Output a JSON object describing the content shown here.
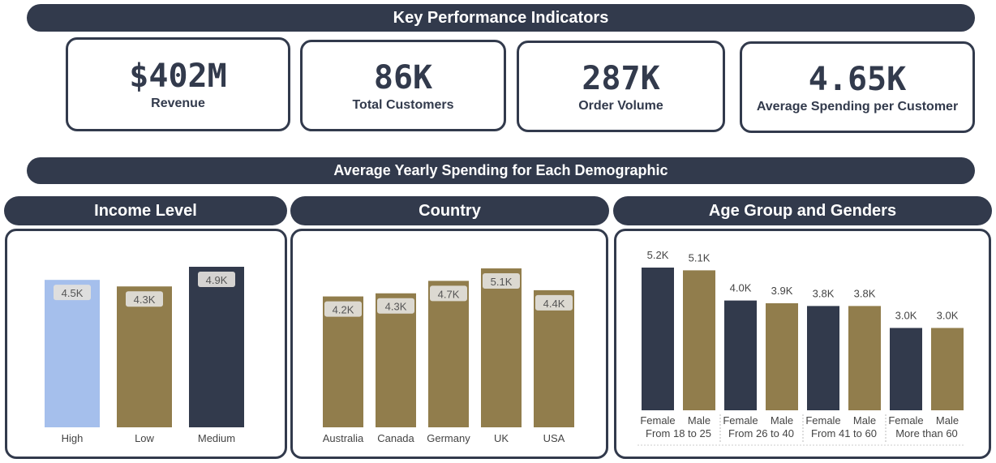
{
  "kpi_header": "Key Performance Indicators",
  "kpis": [
    {
      "value": "$402M",
      "label": "Revenue"
    },
    {
      "value": "86K",
      "label": "Total Customers"
    },
    {
      "value": "287K",
      "label": "Order Volume"
    },
    {
      "value": "4.65K",
      "label": "Average Spending per Customer"
    }
  ],
  "section_header": "Average Yearly Spending for Each Demographic",
  "panel_titles": {
    "income": "Income Level",
    "country": "Country",
    "age": "Age Group and Genders"
  },
  "colors": {
    "navy": "#323a4c",
    "gold": "#917d4c",
    "lightblue": "#a5bfec"
  },
  "chart_data": [
    {
      "type": "bar",
      "title": "Income Level",
      "categories": [
        "High",
        "Low",
        "Medium"
      ],
      "values": [
        4500,
        4300,
        4900
      ],
      "labels": [
        "4.5K",
        "4.3K",
        "4.9K"
      ],
      "colors": [
        "#a5bfec",
        "#917d4c",
        "#323a4c"
      ],
      "ylim": [
        0,
        4900
      ]
    },
    {
      "type": "bar",
      "title": "Country",
      "categories": [
        "Australia",
        "Canada",
        "Germany",
        "UK",
        "USA"
      ],
      "values": [
        4200,
        4300,
        4700,
        5100,
        4400
      ],
      "labels": [
        "4.2K",
        "4.3K",
        "4.7K",
        "5.1K",
        "4.4K"
      ],
      "colors": [
        "#917d4c",
        "#917d4c",
        "#917d4c",
        "#917d4c",
        "#917d4c"
      ],
      "ylim": [
        0,
        5100
      ]
    },
    {
      "type": "bar",
      "title": "Age Group and Genders",
      "groups": [
        "From 18 to 25",
        "From 26 to 40",
        "From 41 to 60",
        "More than 60"
      ],
      "sub_categories": [
        "Female",
        "Male"
      ],
      "series": [
        {
          "name": "Female",
          "values": [
            5200,
            4000,
            3800,
            3000
          ],
          "labels": [
            "5.2K",
            "4.0K",
            "3.8K",
            "3.0K"
          ],
          "color": "#323a4c"
        },
        {
          "name": "Male",
          "values": [
            5100,
            3900,
            3800,
            3000
          ],
          "labels": [
            "5.1K",
            "3.9K",
            "3.8K",
            "3.0K"
          ],
          "color": "#917d4c"
        }
      ],
      "ylim": [
        0,
        5200
      ]
    }
  ]
}
